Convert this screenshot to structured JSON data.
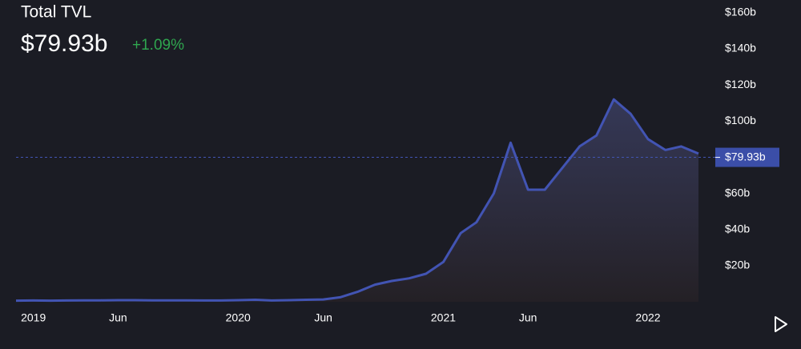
{
  "header": {
    "title": "Total TVL",
    "value": "$79.93b",
    "change": "+1.09%"
  },
  "chart_data": {
    "type": "area",
    "x": [
      "2018-12",
      "2019-01",
      "2019-02",
      "2019-03",
      "2019-04",
      "2019-05",
      "2019-06",
      "2019-07",
      "2019-08",
      "2019-09",
      "2019-10",
      "2019-11",
      "2019-12",
      "2020-01",
      "2020-02",
      "2020-03",
      "2020-04",
      "2020-05",
      "2020-06",
      "2020-07",
      "2020-08",
      "2020-09",
      "2020-10",
      "2020-11",
      "2020-12",
      "2021-01",
      "2021-02",
      "2021-03",
      "2021-04",
      "2021-05",
      "2021-06",
      "2021-07",
      "2021-08",
      "2021-09",
      "2021-10",
      "2021-11",
      "2021-12",
      "2022-01",
      "2022-02",
      "2022-03",
      "2022-04"
    ],
    "values": [
      0.6,
      0.7,
      0.6,
      0.7,
      0.8,
      0.8,
      0.9,
      0.9,
      0.8,
      0.8,
      0.8,
      0.7,
      0.7,
      0.9,
      1.1,
      0.7,
      0.9,
      1.1,
      1.3,
      2.5,
      5.5,
      9.5,
      11.5,
      13,
      15.5,
      22,
      38,
      44,
      60,
      88,
      62,
      62,
      74,
      86,
      92,
      112,
      104,
      90,
      84,
      86,
      82
    ],
    "color": "#4254b3",
    "xlim": [
      "2018-12",
      "2022-05"
    ],
    "xticks": [
      {
        "value": "2019-01",
        "label": "2019"
      },
      {
        "value": "2019-06",
        "label": "Jun"
      },
      {
        "value": "2020-01",
        "label": "2020"
      },
      {
        "value": "2020-06",
        "label": "Jun"
      },
      {
        "value": "2021-01",
        "label": "2021"
      },
      {
        "value": "2021-06",
        "label": "Jun"
      },
      {
        "value": "2022-01",
        "label": "2022"
      }
    ],
    "ylim": [
      0,
      167
    ],
    "yticks": [
      {
        "value": 20,
        "label": "$20b"
      },
      {
        "value": 40,
        "label": "$40b"
      },
      {
        "value": 60,
        "label": "$60b"
      },
      {
        "value": 100,
        "label": "$100b"
      },
      {
        "value": 120,
        "label": "$120b"
      },
      {
        "value": 140,
        "label": "$140b"
      },
      {
        "value": 160,
        "label": "$160b"
      }
    ],
    "current": {
      "value": 79.93,
      "label": "$79.93b"
    }
  }
}
